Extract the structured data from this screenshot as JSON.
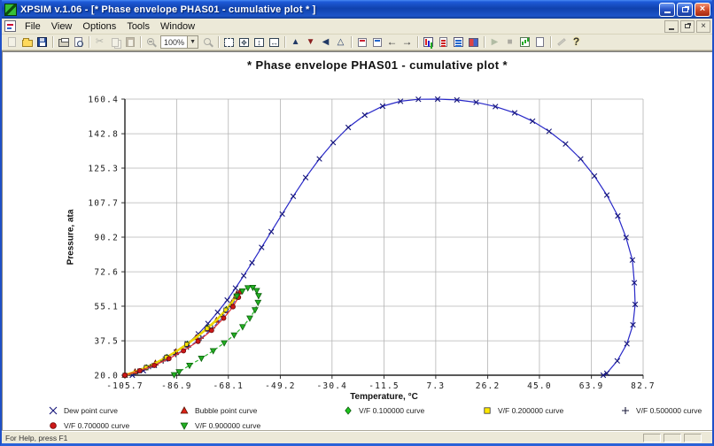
{
  "window": {
    "title": "XPSIM v.1.06 - [* Phase envelope PHAS01    - cumulative plot * ]",
    "controls": {
      "minimize": "minimize",
      "restore": "restore",
      "close": "close"
    }
  },
  "menu": {
    "items": [
      "File",
      "View",
      "Options",
      "Tools",
      "Window"
    ]
  },
  "toolbar": {
    "zoom_value": "100%",
    "buttons": [
      {
        "name": "new",
        "icon": "page",
        "disabled": true
      },
      {
        "name": "open",
        "icon": "folder",
        "disabled": false
      },
      {
        "name": "save",
        "icon": "floppy",
        "disabled": false
      },
      {
        "sep": true
      },
      {
        "name": "print",
        "icon": "printer",
        "disabled": false
      },
      {
        "name": "print-preview",
        "icon": "preview",
        "disabled": false
      },
      {
        "sep": true
      },
      {
        "name": "cut",
        "icon": "scissors",
        "disabled": true
      },
      {
        "name": "copy",
        "icon": "copy",
        "disabled": true
      },
      {
        "name": "paste",
        "icon": "paste",
        "disabled": true
      },
      {
        "sep": true
      },
      {
        "name": "zoom-out",
        "icon": "magminus",
        "disabled": true
      },
      {
        "name": "zoom-level",
        "icon": "combobox",
        "disabled": false
      },
      {
        "name": "zoom-in",
        "icon": "mag",
        "disabled": true
      },
      {
        "sep": true
      },
      {
        "name": "select-region",
        "icon": "boxsel",
        "disabled": false
      },
      {
        "name": "fit-page",
        "icon": "boxfit",
        "disabled": false
      },
      {
        "name": "fit-vertical",
        "icon": "boxv",
        "disabled": false
      },
      {
        "name": "fit-horizontal",
        "icon": "boxh",
        "disabled": false
      },
      {
        "sep": true
      },
      {
        "name": "axis-scale-up",
        "icon": "tria",
        "disabled": false
      },
      {
        "name": "axis-scale-down",
        "icon": "trib",
        "disabled": false
      },
      {
        "name": "axis-scale-left",
        "icon": "tric",
        "disabled": false
      },
      {
        "name": "axis-scale-auto",
        "icon": "trid",
        "disabled": false
      },
      {
        "sep": true
      },
      {
        "name": "label-x",
        "icon": "tag",
        "disabled": false
      },
      {
        "name": "label-y",
        "icon": "tag2",
        "disabled": false
      },
      {
        "name": "previous-plot",
        "icon": "arrowl",
        "disabled": false
      },
      {
        "name": "next-plot",
        "icon": "arrowr",
        "disabled": false
      },
      {
        "sep": true
      },
      {
        "name": "chart-type",
        "icon": "chart",
        "disabled": false
      },
      {
        "name": "edit-notes",
        "icon": "note",
        "disabled": false
      },
      {
        "name": "data-list",
        "icon": "list",
        "disabled": false
      },
      {
        "name": "export-image",
        "icon": "image",
        "disabled": false
      },
      {
        "sep": true
      },
      {
        "name": "run",
        "icon": "play",
        "disabled": true
      },
      {
        "name": "stop",
        "icon": "stop",
        "disabled": true
      },
      {
        "name": "results-chart",
        "icon": "chart2",
        "disabled": false
      },
      {
        "name": "new-report-page",
        "icon": "page2",
        "disabled": false
      },
      {
        "sep": true
      },
      {
        "name": "annotate",
        "icon": "pen",
        "disabled": true
      },
      {
        "name": "help",
        "icon": "help",
        "disabled": false
      }
    ]
  },
  "statusbar": {
    "text": "For Help, press F1"
  },
  "chart_data": {
    "type": "line",
    "title": "* Phase envelope PHAS01   - cumulative plot *",
    "xlabel": "Temperature, °C",
    "ylabel": "Pressure,  ata",
    "xlim": [
      -105.7,
      82.7
    ],
    "ylim": [
      20.0,
      160.4
    ],
    "xticks": [
      -105.7,
      -86.9,
      -68.1,
      -49.2,
      -30.4,
      -11.5,
      7.3,
      26.2,
      45.0,
      63.9,
      82.7
    ],
    "yticks": [
      20.0,
      37.5,
      55.1,
      72.6,
      90.2,
      107.7,
      125.3,
      142.8,
      160.4
    ],
    "grid": true,
    "legend_position": "bottom",
    "series": [
      {
        "name": "Dew point curve",
        "color": "#2828c8",
        "line": "solid",
        "width": 1.2,
        "marker": "x",
        "marker_size": 2.8,
        "marker_fill": "none",
        "marker_edge": "#15157a",
        "marker_every": 1,
        "points": [
          [
            -103,
            20
          ],
          [
            -99,
            22.3
          ],
          [
            -95,
            25
          ],
          [
            -91,
            28.2
          ],
          [
            -87,
            31.8
          ],
          [
            -83,
            36
          ],
          [
            -79,
            41
          ],
          [
            -75.5,
            46.3
          ],
          [
            -72,
            52
          ],
          [
            -68.5,
            58.2
          ],
          [
            -65.5,
            64.3
          ],
          [
            -62.5,
            70.6
          ],
          [
            -59.5,
            77.2
          ],
          [
            -56,
            85
          ],
          [
            -52.5,
            93
          ],
          [
            -48.5,
            102
          ],
          [
            -44.5,
            111
          ],
          [
            -40,
            120.5
          ],
          [
            -35,
            130
          ],
          [
            -30,
            138.3
          ],
          [
            -24.5,
            146
          ],
          [
            -18.5,
            152.3
          ],
          [
            -12,
            156.8
          ],
          [
            -5.5,
            159.3
          ],
          [
            1,
            160.3
          ],
          [
            8,
            160.4
          ],
          [
            15,
            160
          ],
          [
            22,
            158.8
          ],
          [
            29,
            156.6
          ],
          [
            36,
            153.4
          ],
          [
            42.5,
            149.2
          ],
          [
            48.5,
            144
          ],
          [
            54.5,
            137.6
          ],
          [
            60,
            130
          ],
          [
            65,
            121.3
          ],
          [
            69.5,
            111.6
          ],
          [
            73.5,
            101
          ],
          [
            76.5,
            90
          ],
          [
            78.8,
            78.6
          ],
          [
            79.5,
            67
          ],
          [
            79.8,
            56
          ],
          [
            79,
            45.6
          ],
          [
            76.8,
            36
          ],
          [
            73.3,
            27.3
          ],
          [
            69.5,
            21
          ],
          [
            68.2,
            20
          ]
        ]
      },
      {
        "name": "Bubble point curve",
        "color": "#b03000",
        "line": "solid",
        "width": 1,
        "marker": "triangle-up",
        "marker_size": 3.2,
        "marker_fill": "#dd2418",
        "marker_edge": "#5a1000",
        "marker_every": 1,
        "points": [
          [
            -105.7,
            20
          ],
          [
            -102,
            21.8
          ],
          [
            -98.3,
            23.8
          ],
          [
            -94.6,
            26.2
          ],
          [
            -90.9,
            28.9
          ],
          [
            -87.2,
            32
          ],
          [
            -83.5,
            35.4
          ],
          [
            -79.8,
            39.2
          ],
          [
            -76.1,
            43.4
          ],
          [
            -72.4,
            48
          ],
          [
            -69.2,
            52.8
          ],
          [
            -66.8,
            56.8
          ],
          [
            -65.5,
            59.8
          ],
          [
            -65,
            61.5
          ]
        ]
      },
      {
        "name": "V/F 0.100000 curve",
        "color": "#18a018",
        "line": "solid",
        "width": 1,
        "marker": "diamond",
        "marker_size": 3,
        "marker_fill": "#1ec51e",
        "marker_edge": "#0a5a0a",
        "marker_every": 2,
        "points": [
          [
            -105.7,
            20
          ],
          [
            -101.5,
            21.9
          ],
          [
            -97.8,
            24
          ],
          [
            -94.1,
            26.5
          ],
          [
            -90.4,
            29.3
          ],
          [
            -86.7,
            32.5
          ],
          [
            -83,
            36
          ],
          [
            -79.3,
            39.9
          ],
          [
            -75.6,
            44.2
          ],
          [
            -71.9,
            48.9
          ],
          [
            -68.8,
            53.6
          ],
          [
            -66.4,
            57.6
          ],
          [
            -65.1,
            60.4
          ],
          [
            -64.6,
            62
          ]
        ]
      },
      {
        "name": "V/F 0.200000 curve",
        "color": "#ecd800",
        "line": "solid",
        "width": 2.6,
        "marker": "square",
        "marker_size": 2.8,
        "marker_fill": "#ffe800",
        "marker_edge": "#333333",
        "marker_every": 2,
        "points": [
          [
            -105.7,
            20
          ],
          [
            -101.8,
            21.85
          ],
          [
            -98,
            23.9
          ],
          [
            -94.3,
            26.35
          ],
          [
            -90.6,
            29.1
          ],
          [
            -86.9,
            32.25
          ],
          [
            -83.2,
            35.7
          ],
          [
            -79.5,
            39.55
          ],
          [
            -75.8,
            43.8
          ],
          [
            -72.1,
            48.45
          ],
          [
            -69,
            53.2
          ],
          [
            -66.6,
            57.2
          ],
          [
            -65.3,
            60.1
          ],
          [
            -64.8,
            61.8
          ]
        ]
      },
      {
        "name": "V/F 0.500000 curve",
        "color": "#3042cc",
        "line": "dashed",
        "width": 1,
        "marker": "plus",
        "marker_size": 3,
        "marker_fill": "none",
        "marker_edge": "#1a1a3a",
        "marker_every": 1,
        "points": [
          [
            -105.7,
            20
          ],
          [
            -101,
            22
          ],
          [
            -96.4,
            24.4
          ],
          [
            -91.8,
            27.2
          ],
          [
            -87.2,
            30.5
          ],
          [
            -82.6,
            34.3
          ],
          [
            -78,
            38.8
          ],
          [
            -73.8,
            44
          ],
          [
            -70,
            49.8
          ],
          [
            -67,
            55
          ],
          [
            -65,
            59.2
          ],
          [
            -64.2,
            61.8
          ]
        ]
      },
      {
        "name": "V/F 0.700000 curve",
        "color": "#e03030",
        "line": "solid",
        "width": 1.2,
        "marker": "circle",
        "marker_size": 3,
        "marker_fill": "#cc1818",
        "marker_edge": "#6a0808",
        "marker_every": 1,
        "points": [
          [
            -105.7,
            20
          ],
          [
            -100.3,
            22.3
          ],
          [
            -95,
            25
          ],
          [
            -89.7,
            28.4
          ],
          [
            -84.4,
            32.4
          ],
          [
            -79.1,
            37.2
          ],
          [
            -74.2,
            42.8
          ],
          [
            -69.8,
            49
          ],
          [
            -66.4,
            54.8
          ],
          [
            -64.4,
            59.6
          ],
          [
            -63.6,
            62.4
          ]
        ]
      },
      {
        "name": "V/F 0.900000 curve",
        "color": "#28b428",
        "line": "dashed",
        "width": 1.2,
        "marker": "triangle-down",
        "marker_size": 3.4,
        "marker_fill": "#22b022",
        "marker_edge": "#0c600c",
        "marker_every": 1,
        "points": [
          [
            -65,
            60.2
          ],
          [
            -63,
            62.8
          ],
          [
            -61,
            64.4
          ],
          [
            -59.2,
            64.6
          ],
          [
            -57.8,
            63
          ],
          [
            -57.1,
            60.4
          ],
          [
            -57.3,
            57
          ],
          [
            -58.4,
            53.2
          ],
          [
            -60.3,
            49
          ],
          [
            -62.9,
            44.6
          ],
          [
            -66,
            40.4
          ],
          [
            -69.6,
            36.4
          ],
          [
            -73.6,
            32.4
          ],
          [
            -77.9,
            28.6
          ],
          [
            -82.2,
            25
          ],
          [
            -86,
            21.7
          ],
          [
            -87.8,
            20.2
          ]
        ]
      }
    ]
  }
}
